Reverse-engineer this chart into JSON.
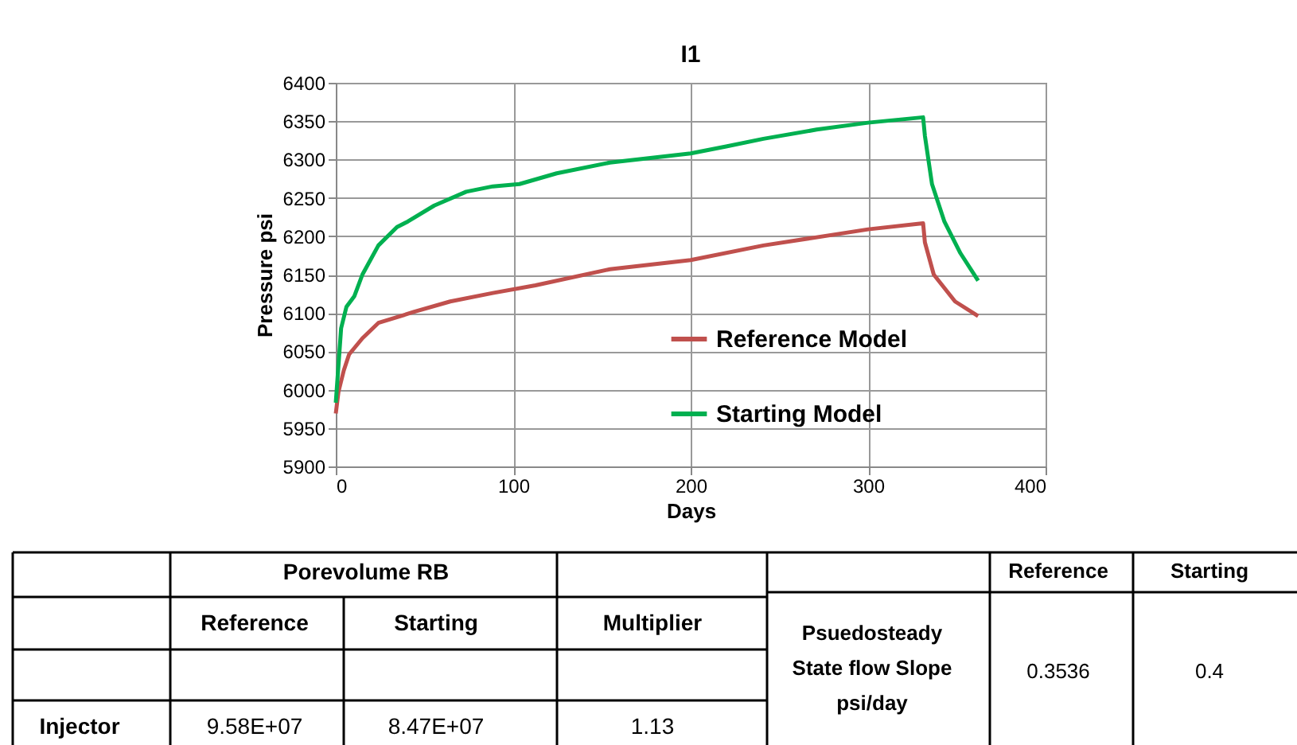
{
  "chart_data": {
    "type": "line",
    "title": "I1",
    "xlabel": "Days",
    "ylabel": "Pressure psi",
    "xlim": [
      0,
      400
    ],
    "xticks": [
      0,
      100,
      200,
      300,
      400
    ],
    "ylim": [
      5900,
      6400
    ],
    "yticks": [
      5900,
      5950,
      6000,
      6050,
      6100,
      6150,
      6200,
      6250,
      6300,
      6350,
      6400
    ],
    "grid": true,
    "legend": "right",
    "marker": "none",
    "line_style": "solid",
    "series": [
      {
        "name": "Reference Model",
        "color": "#c0504d",
        "x": [
          0,
          1.5,
          4.5,
          7.5,
          15,
          24,
          43.5,
          64.5,
          88.5,
          112.5,
          154.5,
          200,
          241,
          300,
          331,
          332,
          337,
          349,
          362
        ],
        "values": [
          5969,
          5997,
          6025,
          6046,
          6067,
          6087,
          6101,
          6115,
          6126,
          6136,
          6157,
          6169,
          6188,
          6209,
          6217,
          6192,
          6150,
          6115,
          6096
        ]
      },
      {
        "name": "Starting Model",
        "color": "#00b050",
        "x": [
          0,
          3,
          6,
          10.5,
          15,
          24,
          34.5,
          40.5,
          55.5,
          73.5,
          88.5,
          103.5,
          124.5,
          154.5,
          200,
          220,
          241,
          271,
          300,
          331,
          332,
          336,
          343,
          352,
          362
        ],
        "values": [
          5983,
          6080,
          6108,
          6122,
          6150,
          6188,
          6212,
          6219,
          6240,
          6258,
          6265,
          6268,
          6282,
          6296,
          6308,
          6317,
          6327,
          6339,
          6348,
          6355,
          6331,
          6268,
          6219,
          6178,
          6142
        ]
      }
    ],
    "annotations": [
      "Porevolume RB",
      "Reference",
      "Starting",
      "Multiplier",
      "Injector",
      "9.58E+07",
      "8.47E+07",
      "1.13",
      "Reference",
      "Starting",
      "Psuedosteady\nState flow Slope\npsi/day",
      "0.3536",
      "0.4"
    ]
  }
}
